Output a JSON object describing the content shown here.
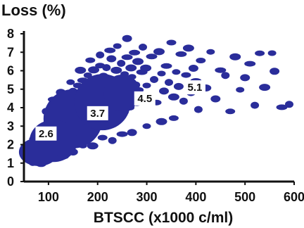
{
  "chart_data": {
    "type": "scatter",
    "title": "Loss (%)",
    "xlabel": "BTSCC (x1000 c/ml)",
    "ylabel": "",
    "xlim": [
      50,
      600
    ],
    "ylim": [
      0,
      8
    ],
    "x_ticks": [
      "100",
      "200",
      "300",
      "400",
      "500",
      "600"
    ],
    "y_ticks": [
      "0",
      "1",
      "2",
      "3",
      "4",
      "5",
      "6",
      "7",
      "8"
    ],
    "point_color": "#2a2d9a",
    "annotations": [
      {
        "text": "2.6",
        "x": 95,
        "y": 2.6
      },
      {
        "text": "3.7",
        "x": 200,
        "y": 3.7
      },
      {
        "text": "4.5",
        "x": 296,
        "y": 4.5
      },
      {
        "text": "5.1",
        "x": 398,
        "y": 5.1
      }
    ],
    "cluster_points": [
      [
        60,
        1.3
      ],
      [
        62,
        2.0
      ],
      [
        65,
        1.5
      ],
      [
        68,
        1.1
      ],
      [
        70,
        1.8
      ],
      [
        72,
        2.3
      ],
      [
        75,
        1.4
      ],
      [
        78,
        2.6
      ],
      [
        80,
        1.9
      ],
      [
        82,
        1.2
      ],
      [
        85,
        2.2
      ],
      [
        88,
        1.6
      ],
      [
        90,
        3.0
      ],
      [
        92,
        2.4
      ],
      [
        95,
        1.8
      ],
      [
        98,
        2.9
      ],
      [
        100,
        2.1
      ],
      [
        102,
        3.3
      ],
      [
        105,
        1.7
      ],
      [
        108,
        2.7
      ],
      [
        110,
        3.5
      ],
      [
        112,
        2.2
      ],
      [
        115,
        3.1
      ],
      [
        118,
        4.0
      ],
      [
        120,
        2.6
      ],
      [
        122,
        3.7
      ],
      [
        125,
        2.0
      ],
      [
        128,
        3.3
      ],
      [
        130,
        4.3
      ],
      [
        132,
        2.8
      ],
      [
        135,
        3.9
      ],
      [
        138,
        2.4
      ],
      [
        140,
        4.6
      ],
      [
        142,
        3.2
      ],
      [
        145,
        3.8
      ],
      [
        148,
        2.9
      ],
      [
        150,
        4.9
      ],
      [
        152,
        3.5
      ],
      [
        155,
        4.2
      ],
      [
        158,
        3.0
      ],
      [
        160,
        5.2
      ],
      [
        162,
        3.8
      ],
      [
        165,
        4.5
      ],
      [
        168,
        3.3
      ],
      [
        170,
        5.5
      ],
      [
        172,
        4.1
      ],
      [
        175,
        3.6
      ],
      [
        178,
        4.8
      ],
      [
        180,
        5.8
      ],
      [
        182,
        3.9
      ],
      [
        185,
        4.4
      ],
      [
        188,
        5.1
      ],
      [
        190,
        3.5
      ],
      [
        192,
        6.0
      ],
      [
        195,
        4.7
      ],
      [
        198,
        3.9
      ],
      [
        200,
        5.4
      ],
      [
        202,
        4.2
      ],
      [
        205,
        6.3
      ],
      [
        208,
        4.9
      ],
      [
        210,
        3.8
      ],
      [
        212,
        5.7
      ],
      [
        215,
        4.4
      ],
      [
        218,
        6.1
      ],
      [
        220,
        5.0
      ],
      [
        222,
        4.0
      ],
      [
        225,
        5.6
      ],
      [
        228,
        6.6
      ],
      [
        230,
        4.6
      ],
      [
        232,
        5.3
      ],
      [
        235,
        3.9
      ],
      [
        238,
        6.0
      ],
      [
        240,
        4.9
      ],
      [
        242,
        5.6
      ],
      [
        245,
        4.3
      ],
      [
        248,
        6.4
      ],
      [
        250,
        5.1
      ],
      [
        252,
        3.7
      ],
      [
        255,
        5.8
      ],
      [
        258,
        4.5
      ],
      [
        260,
        6.8
      ],
      [
        262,
        5.2
      ],
      [
        265,
        4.0
      ],
      [
        268,
        6.2
      ],
      [
        270,
        5.6
      ],
      [
        272,
        4.7
      ],
      [
        275,
        7.0
      ],
      [
        278,
        5.3
      ],
      [
        280,
        4.2
      ],
      [
        282,
        6.5
      ],
      [
        285,
        5.0
      ],
      [
        288,
        4.6
      ],
      [
        290,
        5.9
      ],
      [
        292,
        7.3
      ],
      [
        295,
        4.4
      ],
      [
        298,
        6.1
      ],
      [
        300,
        5.2
      ],
      [
        305,
        4.7
      ],
      [
        310,
        6.7
      ],
      [
        315,
        5.5
      ],
      [
        320,
        4.3
      ],
      [
        325,
        7.1
      ],
      [
        330,
        5.8
      ],
      [
        335,
        4.9
      ],
      [
        340,
        6.3
      ],
      [
        345,
        5.3
      ],
      [
        350,
        7.5
      ],
      [
        355,
        4.6
      ],
      [
        360,
        6.0
      ],
      [
        365,
        5.1
      ],
      [
        370,
        6.9
      ],
      [
        375,
        4.4
      ],
      [
        380,
        5.7
      ],
      [
        385,
        7.2
      ],
      [
        390,
        4.8
      ],
      [
        395,
        6.2
      ],
      [
        400,
        5.4
      ],
      [
        405,
        3.9
      ],
      [
        410,
        6.6
      ],
      [
        420,
        5.0
      ],
      [
        430,
        7.0
      ],
      [
        440,
        4.5
      ],
      [
        450,
        6.1
      ],
      [
        460,
        5.7
      ],
      [
        470,
        3.8
      ],
      [
        480,
        6.8
      ],
      [
        490,
        4.9
      ],
      [
        500,
        5.6
      ],
      [
        510,
        6.4
      ],
      [
        520,
        4.2
      ],
      [
        530,
        6.9
      ],
      [
        540,
        5.1
      ],
      [
        555,
        7.0
      ],
      [
        560,
        5.9
      ],
      [
        575,
        4.0
      ],
      [
        590,
        4.2
      ],
      [
        355,
        3.5
      ],
      [
        330,
        3.2
      ],
      [
        300,
        3.0
      ],
      [
        270,
        2.7
      ],
      [
        250,
        2.5
      ],
      [
        230,
        2.2
      ],
      [
        210,
        2.4
      ],
      [
        190,
        2.0
      ],
      [
        170,
        1.9
      ],
      [
        150,
        1.6
      ],
      [
        130,
        1.4
      ],
      [
        115,
        1.3
      ],
      [
        100,
        1.2
      ],
      [
        85,
        1.0
      ],
      [
        240,
        7.4
      ],
      [
        260,
        7.7
      ],
      [
        225,
        7.1
      ],
      [
        205,
        6.9
      ],
      [
        185,
        6.5
      ],
      [
        165,
        6.0
      ],
      [
        145,
        5.4
      ],
      [
        125,
        4.9
      ],
      [
        110,
        4.4
      ],
      [
        95,
        3.8
      ]
    ]
  }
}
